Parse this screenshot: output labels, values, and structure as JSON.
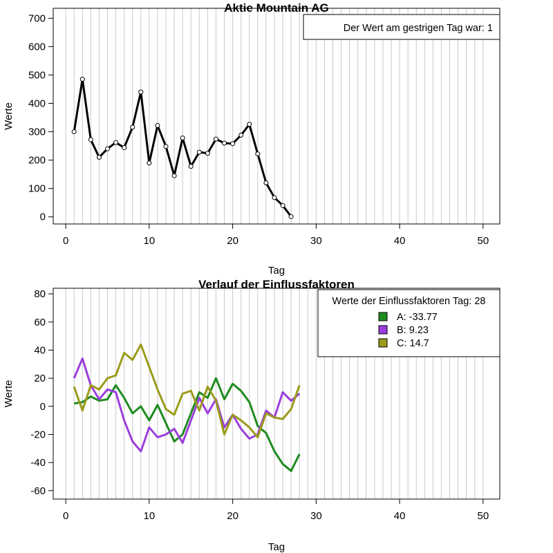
{
  "chart_data": [
    {
      "type": "line",
      "title": "Aktie  Mountain AG",
      "xlabel": "Tag",
      "ylabel": "Werte",
      "xlim": [
        -1.5,
        52
      ],
      "ylim": [
        -25,
        735
      ],
      "xticks": [
        0,
        10,
        20,
        30,
        40,
        50
      ],
      "yticks": [
        0,
        100,
        200,
        300,
        400,
        500,
        600,
        700
      ],
      "vertical_grid": true,
      "grid_color": "#c8c8c8",
      "legend": {
        "position": "top-right",
        "title": "",
        "text": "Der Wert am gestrigen Tag war: 1"
      },
      "series": [
        {
          "color": "#000000",
          "markers": "open-circle",
          "x": [
            1,
            2,
            3,
            4,
            5,
            6,
            7,
            8,
            9,
            10,
            11,
            12,
            13,
            14,
            15,
            16,
            17,
            18,
            19,
            20,
            21,
            22,
            23,
            24,
            25,
            26,
            27
          ],
          "values": [
            300,
            485,
            272,
            210,
            240,
            262,
            244,
            316,
            440,
            190,
            322,
            248,
            145,
            278,
            178,
            228,
            224,
            274,
            260,
            258,
            288,
            326,
            222,
            120,
            68,
            40,
            1
          ]
        }
      ]
    },
    {
      "type": "line",
      "title": "Verlauf der Einflussfaktoren",
      "xlabel": "Tag",
      "ylabel": "Werte",
      "xlim": [
        -1.5,
        52
      ],
      "ylim": [
        -66,
        84
      ],
      "xticks": [
        0,
        10,
        20,
        30,
        40,
        50
      ],
      "yticks": [
        -60,
        -40,
        -20,
        0,
        20,
        40,
        60,
        80
      ],
      "vertical_grid": true,
      "grid_color": "#c8c8c8",
      "legend": {
        "position": "top-right",
        "title": "Werte der Einflussfaktoren Tag: 28",
        "entries": [
          {
            "label": "A: -33.77",
            "color": "#1f8a1f"
          },
          {
            "label": "B: 9.23",
            "color": "#9b3ddb"
          },
          {
            "label": "C: 14.7",
            "color": "#9a9a1c"
          }
        ]
      },
      "series": [
        {
          "name": "A",
          "color": "#1f8a1f",
          "x": [
            1,
            2,
            3,
            4,
            5,
            6,
            7,
            8,
            9,
            10,
            11,
            12,
            13,
            14,
            15,
            16,
            17,
            18,
            19,
            20,
            21,
            22,
            23,
            24,
            25,
            26,
            27,
            28
          ],
          "values": [
            2,
            3,
            7,
            4,
            5,
            15,
            6,
            -5,
            0,
            -10,
            1,
            -12,
            -25,
            -20,
            -5,
            10,
            6,
            20,
            5,
            16,
            11,
            3,
            -14,
            -19,
            -32,
            -41,
            -46,
            -34
          ]
        },
        {
          "name": "B",
          "color": "#9b3ddb",
          "x": [
            1,
            2,
            3,
            4,
            5,
            6,
            7,
            8,
            9,
            10,
            11,
            12,
            13,
            14,
            15,
            16,
            17,
            18,
            19,
            20,
            21,
            22,
            23,
            24,
            25,
            26,
            27,
            28
          ],
          "values": [
            20,
            34,
            15,
            5,
            12,
            10,
            -10,
            -25,
            -32,
            -15,
            -22,
            -20,
            -16,
            -26,
            -10,
            6,
            -5,
            5,
            -15,
            -6,
            -16,
            -23,
            -20,
            -3,
            -8,
            10,
            4,
            9
          ]
        },
        {
          "name": "C",
          "color": "#9a9a1c",
          "x": [
            1,
            2,
            3,
            4,
            5,
            6,
            7,
            8,
            9,
            10,
            11,
            12,
            13,
            14,
            15,
            16,
            17,
            18,
            19,
            20,
            21,
            22,
            23,
            24,
            25,
            26,
            27,
            28
          ],
          "values": [
            14,
            -3,
            15,
            12,
            20,
            22,
            38,
            33,
            44,
            28,
            12,
            -2,
            -6,
            9,
            11,
            -3,
            14,
            4,
            -20,
            -6,
            -10,
            -15,
            -22,
            -5,
            -8,
            -9,
            -2,
            15
          ]
        }
      ]
    }
  ]
}
